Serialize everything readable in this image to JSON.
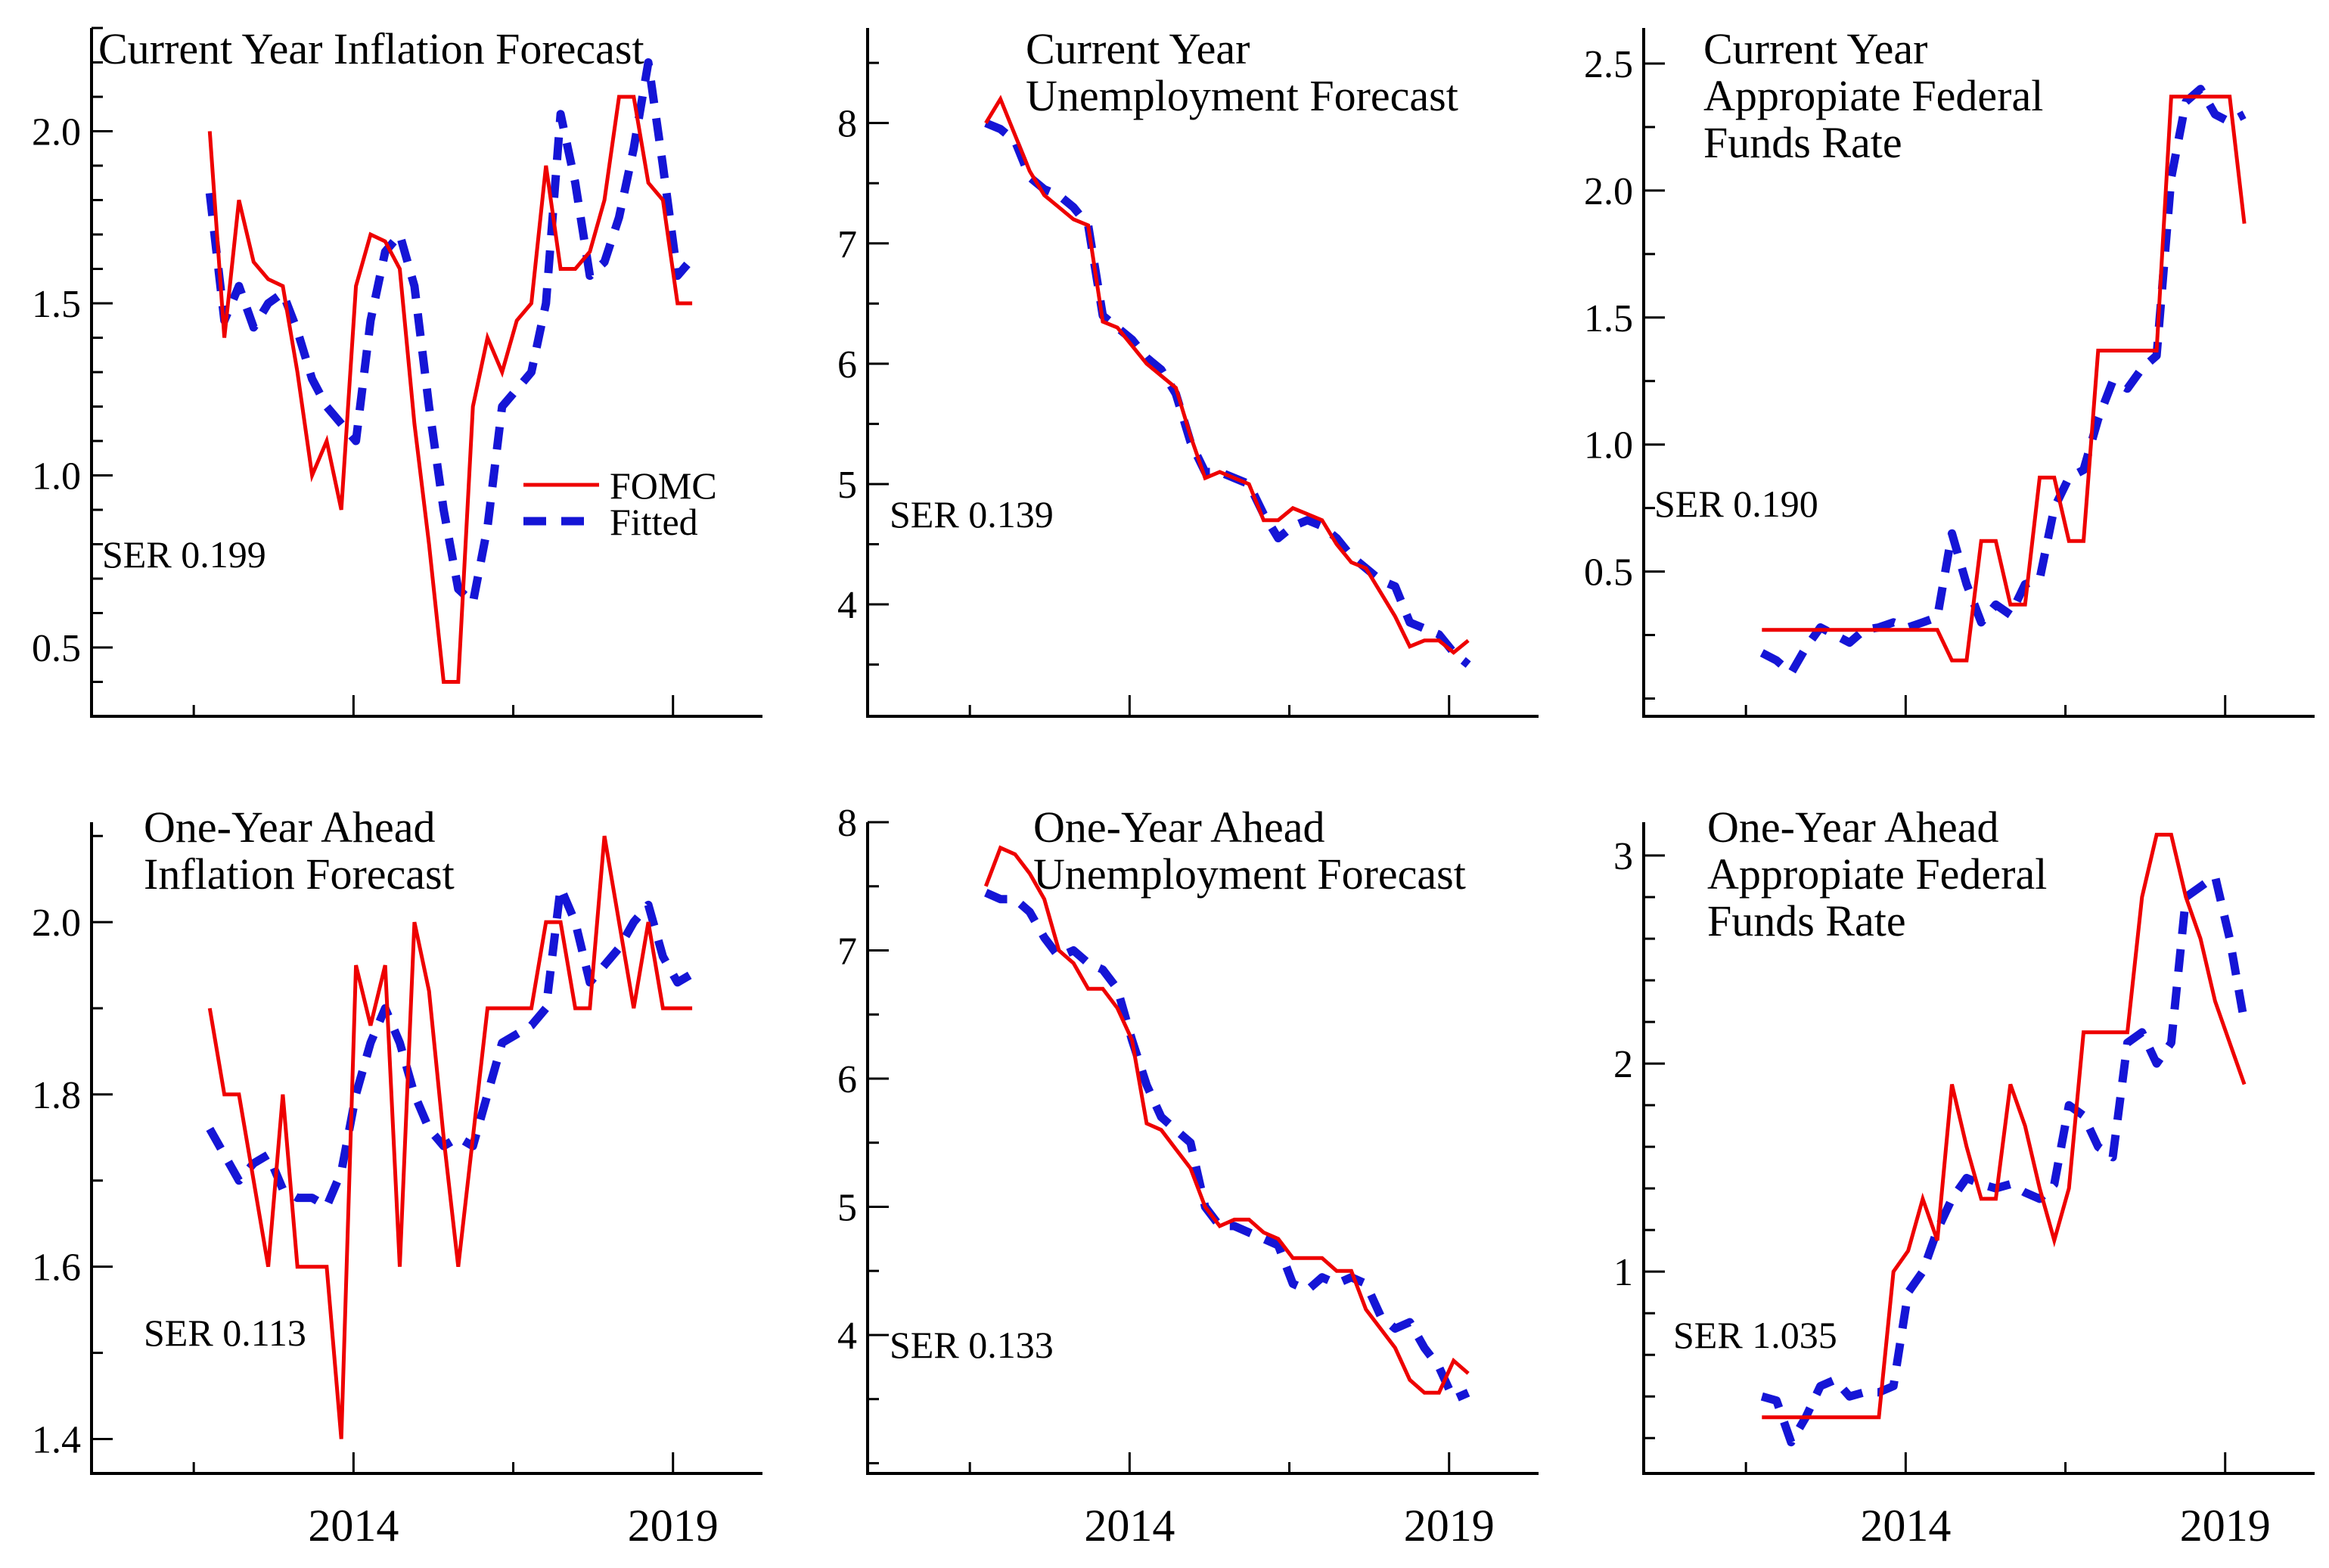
{
  "page": {
    "background": "#ffffff"
  },
  "legend": {
    "entries": [
      {
        "label": "FOMC",
        "color": "#ee0000",
        "style": "solid"
      },
      {
        "label": "Fitted",
        "color": "#1515d6",
        "style": "dashed"
      }
    ]
  },
  "chart_data": {
    "type": "line",
    "title": "",
    "xlabel": "",
    "ylabel": "",
    "grid": false,
    "legend_position": "inside-right-middle-of-first-panel",
    "x_start": 2011.75,
    "x_end": 2019.3,
    "xlim": [
      2009.9,
      2020.4
    ],
    "x_ticks": [
      {
        "v": 2011.5,
        "major": false,
        "label": ""
      },
      {
        "v": 2014,
        "major": true,
        "label": "2014"
      },
      {
        "v": 2016.5,
        "major": false,
        "label": ""
      },
      {
        "v": 2019,
        "major": true,
        "label": "2019"
      }
    ],
    "series_names": [
      "FOMC",
      "Fitted"
    ],
    "panels": [
      {
        "id": "current-year-inflation",
        "row": 0,
        "title_lines": [
          "Current Year Inflation Forecast"
        ],
        "title_x": 130,
        "ser_label": "SER 0.199",
        "ser_x": 135,
        "ser_y": 750,
        "show_legend": true,
        "ylim": [
          0.3,
          2.3
        ],
        "y_minor_step": 0.1,
        "y_major": [
          {
            "v": 0.5,
            "label": "0.5"
          },
          {
            "v": 1.0,
            "label": "1.0"
          },
          {
            "v": 1.5,
            "label": "1.5"
          },
          {
            "v": 2.0,
            "label": "2.0"
          }
        ],
        "fomc": [
          2.0,
          1.4,
          1.8,
          1.62,
          1.57,
          1.55,
          1.3,
          1.0,
          1.1,
          0.9,
          1.55,
          1.7,
          1.68,
          1.6,
          1.15,
          0.8,
          0.4,
          0.4,
          1.2,
          1.4,
          1.3,
          1.45,
          1.5,
          1.9,
          1.6,
          1.6,
          1.65,
          1.8,
          2.1,
          2.1,
          1.85,
          1.8,
          1.5,
          1.5
        ],
        "fitted": [
          1.82,
          1.45,
          1.55,
          1.43,
          1.5,
          1.53,
          1.42,
          1.28,
          1.2,
          1.15,
          1.1,
          1.45,
          1.65,
          1.7,
          1.55,
          1.2,
          0.9,
          0.67,
          0.63,
          0.85,
          1.2,
          1.25,
          1.3,
          1.5,
          2.05,
          1.85,
          1.58,
          1.62,
          1.75,
          1.95,
          2.2,
          1.9,
          1.58,
          1.63
        ]
      },
      {
        "id": "current-year-unemployment",
        "row": 0,
        "title_lines": [
          "Current Year",
          "Unemployment Forecast"
        ],
        "title_x": 330,
        "ser_label": "SER 0.139",
        "ser_x": 150,
        "ser_y": 697,
        "show_legend": false,
        "ylim": [
          3.07,
          8.79
        ],
        "y_minor_step": 0.5,
        "y_major": [
          {
            "v": 4,
            "label": "4"
          },
          {
            "v": 5,
            "label": "5"
          },
          {
            "v": 6,
            "label": "6"
          },
          {
            "v": 7,
            "label": "7"
          },
          {
            "v": 8,
            "label": "8"
          }
        ],
        "fomc": [
          8.0,
          8.2,
          7.9,
          7.6,
          7.4,
          7.3,
          7.2,
          7.15,
          6.35,
          6.3,
          6.15,
          6.0,
          5.9,
          5.8,
          5.4,
          5.05,
          5.1,
          5.05,
          5.0,
          4.7,
          4.7,
          4.8,
          4.75,
          4.7,
          4.5,
          4.35,
          4.3,
          4.1,
          3.9,
          3.65,
          3.7,
          3.7,
          3.6,
          3.7
        ],
        "fitted": [
          8.0,
          7.95,
          7.85,
          7.55,
          7.45,
          7.4,
          7.3,
          7.15,
          6.4,
          6.3,
          6.2,
          6.05,
          5.95,
          5.75,
          5.35,
          5.1,
          5.1,
          5.05,
          5.0,
          4.75,
          4.55,
          4.65,
          4.7,
          4.65,
          4.55,
          4.4,
          4.3,
          4.2,
          4.15,
          3.85,
          3.8,
          3.75,
          3.6,
          3.5
        ]
      },
      {
        "id": "current-year-federal-funds-rate",
        "row": 0,
        "title_lines": [
          "Current Year",
          "Appropiate Federal",
          "Funds Rate"
        ],
        "title_x": 200,
        "ser_label": "SER 0.190",
        "ser_x": 135,
        "ser_y": 683,
        "show_legend": false,
        "ylim": [
          -0.07,
          2.64
        ],
        "y_minor_step": 0.25,
        "y_major": [
          {
            "v": 0.5,
            "label": "0.5"
          },
          {
            "v": 1.0,
            "label": "1.0"
          },
          {
            "v": 1.5,
            "label": "1.5"
          },
          {
            "v": 2.0,
            "label": "2.0"
          },
          {
            "v": 2.5,
            "label": "2.5"
          }
        ],
        "fomc": [
          0.27,
          0.27,
          0.27,
          0.27,
          0.27,
          0.27,
          0.27,
          0.27,
          0.27,
          0.27,
          0.27,
          0.27,
          0.27,
          0.15,
          0.15,
          0.62,
          0.62,
          0.37,
          0.37,
          0.87,
          0.87,
          0.62,
          0.62,
          1.37,
          1.37,
          1.37,
          1.37,
          1.37,
          2.37,
          2.37,
          2.37,
          2.37,
          2.37,
          1.87
        ],
        "fitted": [
          0.18,
          0.15,
          0.1,
          0.2,
          0.28,
          0.25,
          0.22,
          0.27,
          0.28,
          0.3,
          0.28,
          0.3,
          0.32,
          0.65,
          0.45,
          0.3,
          0.37,
          0.33,
          0.45,
          0.47,
          0.75,
          0.87,
          0.9,
          1.1,
          1.25,
          1.22,
          1.3,
          1.35,
          2.05,
          2.35,
          2.4,
          2.3,
          2.27,
          2.3
        ]
      },
      {
        "id": "one-year-ahead-inflation",
        "row": 1,
        "title_lines": [
          "One-Year Ahead",
          "Inflation Forecast"
        ],
        "title_x": 190,
        "ser_label": "SER 0.113",
        "ser_x": 190,
        "ser_y": 742,
        "show_legend": false,
        "ylim": [
          1.36,
          2.116
        ],
        "y_minor_step": 0.1,
        "y_major": [
          {
            "v": 1.4,
            "label": "1.4"
          },
          {
            "v": 1.6,
            "label": "1.6"
          },
          {
            "v": 1.8,
            "label": "1.8"
          },
          {
            "v": 2.0,
            "label": "2.0"
          }
        ],
        "fomc": [
          1.9,
          1.8,
          1.8,
          1.7,
          1.6,
          1.8,
          1.6,
          1.6,
          1.6,
          1.4,
          1.95,
          1.88,
          1.95,
          1.6,
          2.0,
          1.92,
          1.75,
          1.6,
          1.75,
          1.9,
          1.9,
          1.9,
          1.9,
          2.0,
          2.0,
          1.9,
          1.9,
          2.1,
          2.0,
          1.9,
          2.0,
          1.9,
          1.9,
          1.9
        ],
        "fitted": [
          1.76,
          1.73,
          1.7,
          1.72,
          1.73,
          1.69,
          1.68,
          1.68,
          1.67,
          1.71,
          1.8,
          1.86,
          1.9,
          1.86,
          1.8,
          1.76,
          1.74,
          1.75,
          1.74,
          1.8,
          1.86,
          1.87,
          1.88,
          1.9,
          2.04,
          2.0,
          1.93,
          1.95,
          1.97,
          2.0,
          2.02,
          1.96,
          1.93,
          1.94
        ]
      },
      {
        "id": "one-year-ahead-unemployment",
        "row": 1,
        "title_lines": [
          "One-Year Ahead",
          "Unemployment Forecast"
        ],
        "title_x": 340,
        "ser_label": "SER 0.133",
        "ser_x": 150,
        "ser_y": 758,
        "show_legend": false,
        "ylim": [
          2.92,
          8.0
        ],
        "y_minor_step": 0.5,
        "y_major": [
          {
            "v": 4,
            "label": "4"
          },
          {
            "v": 5,
            "label": "5"
          },
          {
            "v": 6,
            "label": "6"
          },
          {
            "v": 7,
            "label": "7"
          },
          {
            "v": 8,
            "label": "8"
          }
        ],
        "fomc": [
          7.5,
          7.8,
          7.75,
          7.6,
          7.4,
          7.0,
          6.9,
          6.7,
          6.7,
          6.55,
          6.3,
          5.65,
          5.6,
          5.45,
          5.3,
          5.0,
          4.85,
          4.9,
          4.9,
          4.8,
          4.75,
          4.6,
          4.6,
          4.6,
          4.5,
          4.5,
          4.2,
          4.05,
          3.9,
          3.65,
          3.55,
          3.55,
          3.8,
          3.7
        ],
        "fitted": [
          7.45,
          7.4,
          7.4,
          7.3,
          7.1,
          6.95,
          7.0,
          6.9,
          6.85,
          6.7,
          6.3,
          5.95,
          5.7,
          5.6,
          5.5,
          5.0,
          4.85,
          4.85,
          4.8,
          4.75,
          4.7,
          4.4,
          4.35,
          4.45,
          4.4,
          4.45,
          4.4,
          4.15,
          4.05,
          4.1,
          3.9,
          3.75,
          3.5,
          3.55
        ]
      },
      {
        "id": "one-year-ahead-federal-funds-rate",
        "row": 1,
        "title_lines": [
          "One-Year Ahead",
          "Appropiate Federal",
          "Funds Rate"
        ],
        "title_x": 205,
        "ser_label": "SER 1.035",
        "ser_x": 160,
        "ser_y": 745,
        "show_legend": false,
        "ylim": [
          0.03,
          3.16
        ],
        "y_minor_step": 0.2,
        "y_major": [
          {
            "v": 1,
            "label": "1"
          },
          {
            "v": 2,
            "label": "2"
          },
          {
            "v": 3,
            "label": "3"
          }
        ],
        "fomc": [
          0.3,
          0.3,
          0.3,
          0.3,
          0.3,
          0.3,
          0.3,
          0.3,
          0.3,
          1.0,
          1.1,
          1.35,
          1.15,
          1.9,
          1.6,
          1.35,
          1.35,
          1.9,
          1.7,
          1.4,
          1.15,
          1.4,
          2.15,
          2.15,
          2.15,
          2.15,
          2.8,
          3.1,
          3.1,
          2.8,
          2.6,
          2.3,
          2.1,
          1.9
        ],
        "fitted": [
          0.4,
          0.38,
          0.18,
          0.3,
          0.45,
          0.48,
          0.4,
          0.42,
          0.42,
          0.45,
          0.9,
          1.0,
          1.2,
          1.35,
          1.45,
          1.42,
          1.4,
          1.42,
          1.38,
          1.35,
          1.42,
          1.8,
          1.75,
          1.6,
          1.55,
          2.1,
          2.15,
          2.0,
          2.1,
          2.8,
          2.85,
          2.9,
          2.6,
          2.2
        ]
      }
    ]
  }
}
